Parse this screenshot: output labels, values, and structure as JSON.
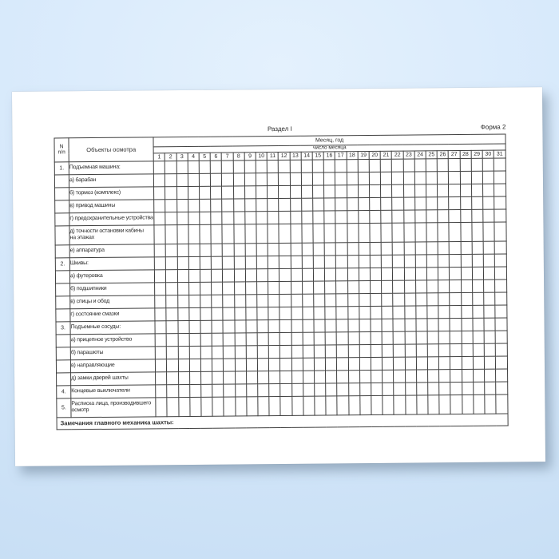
{
  "colors": {
    "background_top": "#e4f1fd",
    "background_bottom": "#c7def4",
    "paper": "#ffffff",
    "grid_line": "#3f3f3f",
    "text": "#2b2b2b"
  },
  "page": {
    "section_title": "Раздел I",
    "form_label": "Форма 2"
  },
  "table": {
    "header": {
      "num_line1": "N",
      "num_line2": "п/п",
      "objects": "Объекты осмотра",
      "month_year": "Месяц, год",
      "day_word": "число месяца",
      "days": [
        "1",
        "2",
        "3",
        "4",
        "5",
        "6",
        "7",
        "8",
        "9",
        "10",
        "11",
        "12",
        "13",
        "14",
        "15",
        "16",
        "17",
        "18",
        "19",
        "20",
        "21",
        "22",
        "23",
        "24",
        "25",
        "26",
        "27",
        "28",
        "29",
        "30",
        "31"
      ]
    },
    "rows": [
      {
        "num": "1.",
        "label": "Подъемная машина:"
      },
      {
        "num": "",
        "label": "а) барабан"
      },
      {
        "num": "",
        "label": "б) тормоз (комплекс)"
      },
      {
        "num": "",
        "label": "в) привод машины"
      },
      {
        "num": "",
        "label": "г) предохранительные устройства"
      },
      {
        "num": "",
        "label": "д) точности остановки кабины\nна этажах"
      },
      {
        "num": "",
        "label": "е) аппаратура"
      },
      {
        "num": "2.",
        "label": "Шкивы:"
      },
      {
        "num": "",
        "label": "а) футеровка"
      },
      {
        "num": "",
        "label": "б) подшипники"
      },
      {
        "num": "",
        "label": "в) спицы и обод"
      },
      {
        "num": "",
        "label": "г) состояние смазки"
      },
      {
        "num": "3.",
        "label": "Подъемные сосуды:"
      },
      {
        "num": "",
        "label": "а) прицепное устройство"
      },
      {
        "num": "",
        "label": "б) парашюты"
      },
      {
        "num": "",
        "label": "в) направляющие"
      },
      {
        "num": "",
        "label": "д) замки дверей шахты"
      },
      {
        "num": "4.",
        "label": "Концевые выключатели"
      },
      {
        "num": "5.",
        "label": "Расписка лица, производившего\nосмотр"
      }
    ],
    "footer_note": "Замечания главного механика шахты:"
  }
}
